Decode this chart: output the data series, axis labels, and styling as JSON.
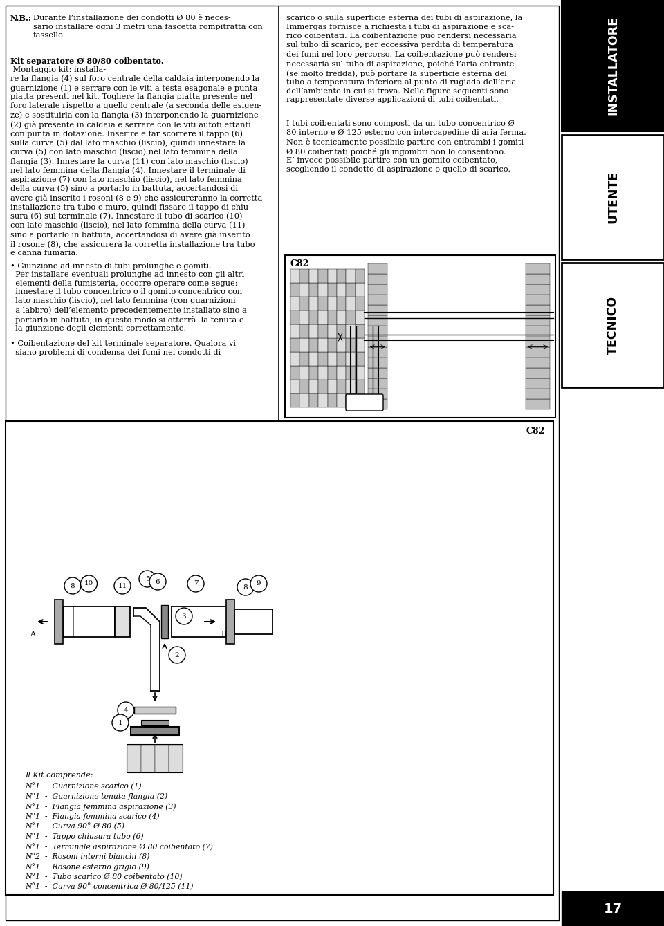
{
  "page_bg": "#ffffff",
  "sidebar_labels": [
    "INSTALLATORE",
    "UTENTE",
    "TECNICO"
  ],
  "page_number": "17",
  "col1_para1": "N.B.: Durante l’installazione dei condotti Ø 80 è neces-\nsario installare ogni 3 metri una fascetta rompitratta con\ntassello.",
  "col1_para2_bold": "Kit separatore Ø 80/80 coibentato.",
  "col1_para2_rest": " Montaggio kit: installa-\nre la flangia (4) sul foro centrale della caldaia interponendo la\nguarnizione (1) e serrare con le viti a testa esagonale e punta\npiatta presenti nel kit. Togliere la flangia piatta presente nel\nforo laterale rispetto a quello centrale (a seconda delle esigen-\nze) e sostituirla con la flangia (3) interponendo la guarnizione\n(2) già presente in caldaia e serrare con le viti autofilettanti\ncon punta in dotazione. Inserire e far scorrere il tappo (6)\nsulla curva (5) dal lato maschio (liscio), quindi innestare la\ncurva (5) con lato maschio (liscio) nel lato femmina della\nflangia (3). Innestare la curva (11) con lato maschio (liscio)\nnel lato femmina della flangia (4). Innestare il terminale di\naspirazione (7) con lato maschio (liscio), nel lato femmina\ndella curva (5) sino a portarlo in battuta, accertandosi di\navere già inserito i rosoni (8 e 9) che assicureranno la corretta\ninstallazione tra tubo e muro, quindi fissare il tappo di chiu-\nsura (6) sul terminale (7). Innestare il tubo di scarico (10)\ncon lato maschio (liscio), nel lato femmina della curva (11)\nsino a portarlo in battuta, accertandosi di avere già inserito\nil rosone (8), che assicurerà la corretta installazione tra tubo\ne canna fumaria.",
  "col1_bullet1": "• Giunzione ad innesto di tubi prolunghe e gomiti.\n  Per installare eventuali prolunghe ad innesto con gli altri\n  elementi della fumisteria, occorre operare come segue:\n  innestare il tubo concentrico o il gomito concentrico con\n  lato maschio (liscio), nel lato femmina (con guarnizioni\n  a labbro) dell’elemento precedentemente installato sino a\n  portarlo in battuta, in questo modo si otterrà  la tenuta e\n  la giunzione degli elementi correttamente.",
  "col1_bullet2": "• Coibentazione del kit terminale separatore. Qualora vi\n  siano problemi di condensa dei fumi nei condotti di",
  "col2_para1": "scarico o sulla superficie esterna dei tubi di aspirazione, la\nImmergas fornisce a richiesta i tubi di aspirazione e sca-\nrico coibentati. La coibentazione può rendersi necessaria\nsul tubo di scarico, per eccessiva perdita di temperatura\ndei fumi nel loro percorso. La coibentazione può rendersi\nnecessaria sul tubo di aspirazione, poiché l’aria entrante\n(se molto fredda), può portare la superficie esterna del\ntubo a temperatura inferiore al punto di rugiada dell’aria\ndell’ambiente in cui si trova. Nelle figure seguenti sono\nrappresentate diverse applicazioni di tubi coibentati.",
  "col2_para2": "I tubi coibentati sono composti da un tubo concentrico Ø\n80 interno e Ø 125 esterno con intercapedine di aria ferma.\nNon è tecnicamente possibile partire con entrambi i gomiti\nØ 80 coibentati poiché gli ingombri non lo consentono.\nE’ invece possibile partire con un gomito coibentato,\nscegliendo il condotto di aspirazione o quello di scarico.",
  "kit_title": "Il Kit comprende:",
  "kit_list": [
    "N°1  -  Guarnizione scarico (1)",
    "N°1  -  Guarnizione tenuta flangia (2)",
    "N°1  -  Flangia femmina aspirazione (3)",
    "N°1  -  Flangia femmina scarico (4)",
    "N°1  -  Curva 90° Ø 80 (5)",
    "N°1  -  Tappo chiusura tubo (6)",
    "N°1  -  Terminale aspirazione Ø 80 coibentato (7)",
    "N°2  -  Rosoni interni bianchi (8)",
    "N°1  -  Rosone esterno grigio (9)",
    "N°1  -  Tubo scarico Ø 80 coibentato (10)",
    "N°1  -  Curva 90° concentrica Ø 80/125 (11)"
  ],
  "diag_label": "C82",
  "asm_label": "C82"
}
